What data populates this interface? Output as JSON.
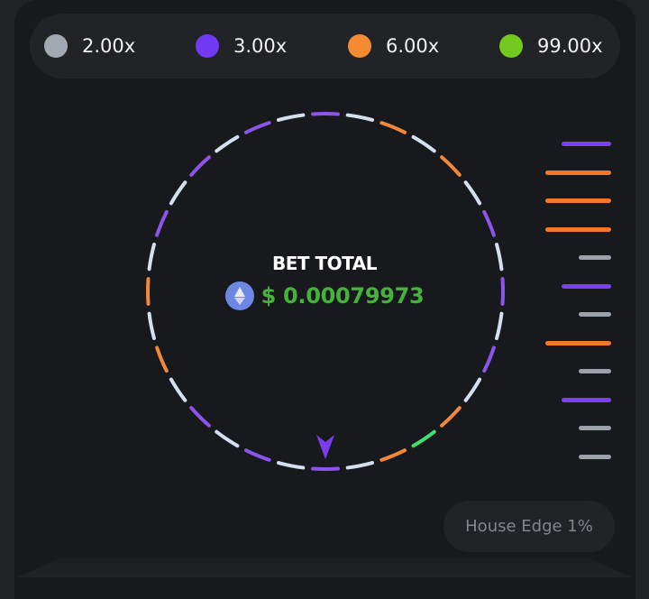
{
  "legend": [
    {
      "label": "2.00x",
      "color": "#a3a8b2"
    },
    {
      "label": "3.00x",
      "color": "#7239f5"
    },
    {
      "label": "6.00x",
      "color": "#f38a34"
    },
    {
      "label": "99.00x",
      "color": "#74c91e"
    }
  ],
  "wheel": {
    "segments": [
      "purple",
      "white",
      "orange",
      "white",
      "orange",
      "white",
      "purple",
      "white",
      "purple",
      "white",
      "purple",
      "white",
      "orange",
      "green",
      "orange",
      "white",
      "purple",
      "white",
      "purple",
      "white",
      "purple",
      "white",
      "orange",
      "white",
      "orange",
      "white",
      "purple",
      "white",
      "purple",
      "white",
      "purple",
      "white"
    ],
    "colors": {
      "purple": "#8b55ea",
      "white": "#d6dfef",
      "orange": "#f2883a",
      "green": "#3fe070"
    },
    "pointer_color": "#7a3cf0",
    "pointer_icon": "arrow-down-icon"
  },
  "center": {
    "title": "BET TOTAL",
    "value": "$ 0.00079973",
    "currency_icon": "ethereum-icon"
  },
  "history_bars": [
    "purple",
    "orange",
    "orange",
    "orange",
    "gray",
    "purple",
    "gray",
    "orange",
    "gray",
    "purple",
    "gray",
    "gray"
  ],
  "history_colors": {
    "purple": "#7a40f2",
    "orange": "#f2782b",
    "gray": "#9da2aa"
  },
  "house_edge": "House Edge 1%"
}
